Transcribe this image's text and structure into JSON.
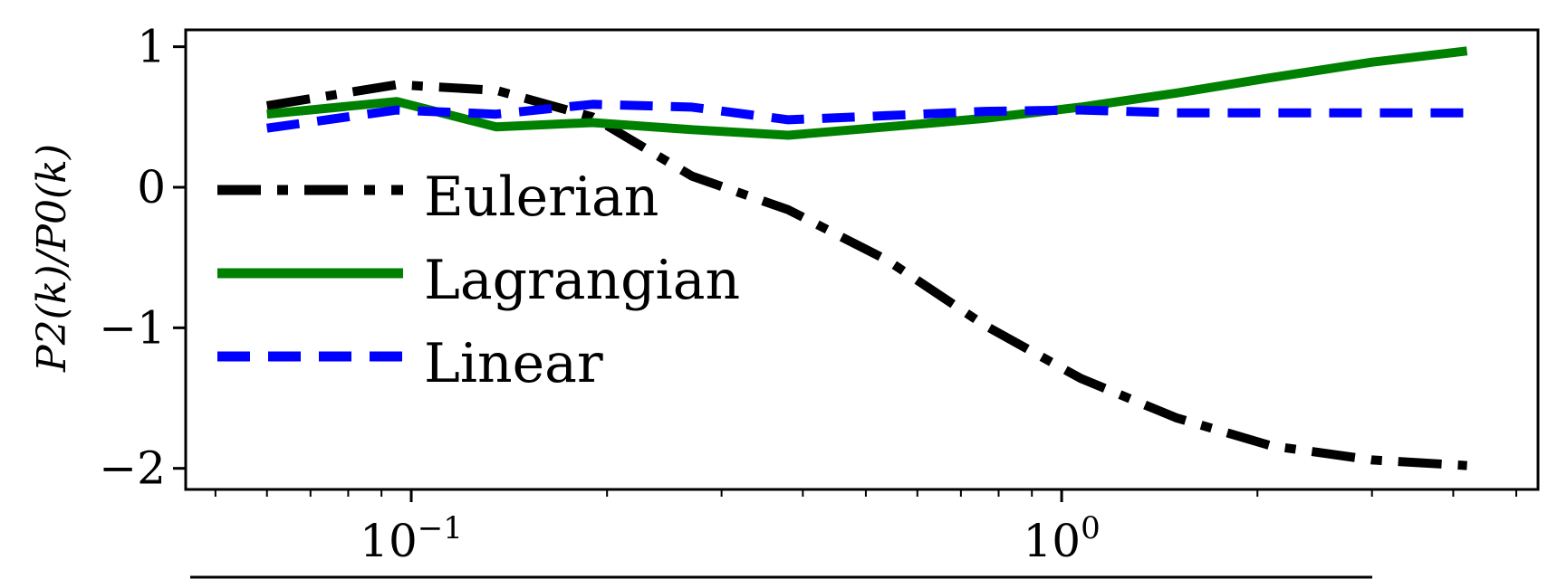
{
  "chart_data": {
    "type": "line",
    "xscale": "log",
    "xlim": [
      0.045,
      5.4
    ],
    "ylim": [
      -2.15,
      1.12
    ],
    "xlabel": "",
    "ylabel": "P2(k)/P0(k)",
    "yticks": [
      {
        "value": 1,
        "label": "1"
      },
      {
        "value": 0,
        "label": "0"
      },
      {
        "value": -1,
        "label": "−1"
      },
      {
        "value": -2,
        "label": "−2"
      }
    ],
    "xticks": [
      {
        "value": 0.1,
        "base": "10",
        "exp": "−1"
      },
      {
        "value": 1,
        "base": "10",
        "exp": "0"
      }
    ],
    "series": [
      {
        "name": "Eulerian",
        "color": "#000000",
        "style": "dashdot",
        "x": [
          0.06,
          0.095,
          0.135,
          0.19,
          0.27,
          0.38,
          0.54,
          0.76,
          1.07,
          1.5,
          2.1,
          3.0,
          4.2
        ],
        "y": [
          0.58,
          0.73,
          0.69,
          0.5,
          0.08,
          -0.16,
          -0.52,
          -0.98,
          -1.36,
          -1.64,
          -1.84,
          -1.94,
          -1.98
        ]
      },
      {
        "name": "Lagrangian",
        "color": "#008000",
        "style": "solid",
        "x": [
          0.06,
          0.095,
          0.135,
          0.19,
          0.27,
          0.38,
          0.54,
          0.76,
          1.07,
          1.5,
          2.1,
          3.0,
          4.2
        ],
        "y": [
          0.52,
          0.61,
          0.43,
          0.46,
          0.41,
          0.37,
          0.43,
          0.49,
          0.57,
          0.67,
          0.78,
          0.89,
          0.97
        ]
      },
      {
        "name": "Linear",
        "color": "#0000ff",
        "style": "dashed",
        "x": [
          0.06,
          0.095,
          0.135,
          0.19,
          0.27,
          0.38,
          0.54,
          0.76,
          1.07,
          1.5,
          2.1,
          3.0,
          4.2
        ],
        "y": [
          0.42,
          0.55,
          0.52,
          0.59,
          0.57,
          0.48,
          0.51,
          0.54,
          0.55,
          0.53,
          0.53,
          0.53,
          0.53
        ]
      }
    ],
    "legend": {
      "placement": "center-left"
    },
    "grid": false
  }
}
